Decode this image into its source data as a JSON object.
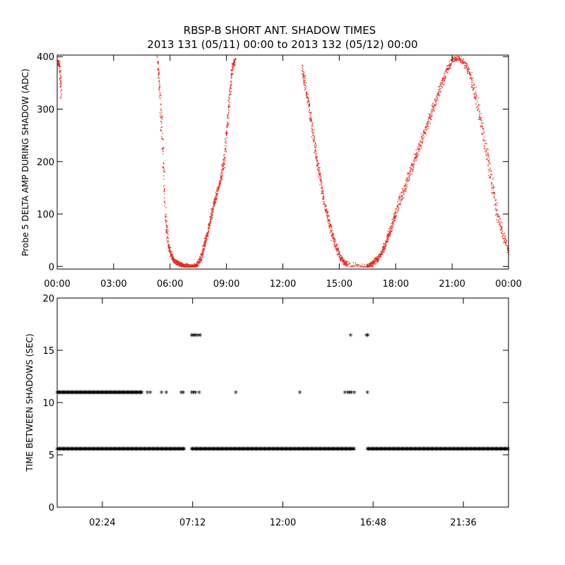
{
  "figure": {
    "title_line1": "RBSP-B SHORT ANT. SHADOW TIMES",
    "title_line2": "2013 131 (05/11) 00:00 to 2013 132 (05/12) 00:00"
  },
  "chart_data": [
    {
      "type": "scatter",
      "panel": "top",
      "xlabel": "",
      "ylabel": "Probe 5 DELTA AMP DURING SHADOW (ADC)",
      "xlim": [
        0,
        24
      ],
      "ylim": [
        -5,
        403
      ],
      "xtick_values": [
        0,
        3,
        6,
        9,
        12,
        15,
        18,
        21,
        24
      ],
      "xtick_labels": [
        "00:00",
        "03:00",
        "06:00",
        "09:00",
        "12:00",
        "15:00",
        "18:00",
        "21:00",
        "00:00"
      ],
      "ytick_values": [
        0,
        100,
        200,
        300,
        400
      ],
      "ytick_labels": [
        "0",
        "100",
        "200",
        "300",
        "400"
      ],
      "point_color": "#e8251a",
      "grid": false,
      "legend": "none",
      "series": [
        {
          "description": "dense dotted envelope (hour, amplitude ADC)",
          "x": [
            0.0,
            0.1,
            0.2,
            5.3,
            5.45,
            5.6,
            5.75,
            5.9,
            6.05,
            6.2,
            6.35,
            6.5,
            6.65,
            6.8,
            7.0,
            7.2,
            7.35,
            7.5,
            7.65,
            7.8,
            7.95,
            8.1,
            8.25,
            8.4,
            8.55,
            8.7,
            8.85,
            9.0,
            9.15,
            9.3,
            9.45,
            13.0,
            13.2,
            13.4,
            13.6,
            13.8,
            14.0,
            14.2,
            14.4,
            14.6,
            14.8,
            15.0,
            15.2,
            15.4,
            16.4,
            16.6,
            16.8,
            17.0,
            17.2,
            17.4,
            17.6,
            17.8,
            18.0,
            18.3,
            18.6,
            18.9,
            19.2,
            19.5,
            19.8,
            20.1,
            20.4,
            20.7,
            21.0,
            21.3,
            21.6,
            21.9,
            22.2,
            22.5,
            22.8,
            23.1,
            23.4,
            23.7,
            24.0
          ],
          "y": [
            392,
            385,
            330,
            400,
            330,
            220,
            90,
            40,
            20,
            12,
            8,
            5,
            3,
            2,
            0,
            0,
            2,
            8,
            20,
            40,
            60,
            85,
            110,
            130,
            150,
            170,
            200,
            260,
            330,
            380,
            395,
            380,
            340,
            300,
            250,
            200,
            160,
            120,
            90,
            60,
            40,
            20,
            10,
            5,
            0,
            3,
            8,
            15,
            25,
            40,
            60,
            80,
            105,
            135,
            165,
            195,
            225,
            255,
            285,
            315,
            345,
            375,
            395,
            398,
            390,
            370,
            330,
            280,
            220,
            160,
            100,
            60,
            30
          ]
        }
      ]
    },
    {
      "type": "scatter",
      "panel": "bottom",
      "xlabel": "",
      "ylabel": "TIME BETWEEN SHADOWS (SEC)",
      "xlim": [
        0,
        24
      ],
      "ylim": [
        0,
        20
      ],
      "xtick_values": [
        2.4,
        7.2,
        12.0,
        16.8,
        21.6
      ],
      "xtick_labels": [
        "02:24",
        "07:12",
        "12:00",
        "16:48",
        "21:36"
      ],
      "ytick_values": [
        0,
        5,
        10,
        15,
        20
      ],
      "ytick_labels": [
        "0",
        "5",
        "10",
        "15",
        "20"
      ],
      "marker": "*",
      "point_color": "#000000",
      "grid": false,
      "legend": "none",
      "series": [
        {
          "description": "continuous run at ~5.5 s (start hour, end hour)",
          "segments": [
            [
              0.0,
              6.75
            ],
            [
              7.15,
              15.8
            ],
            [
              16.5,
              24.0
            ]
          ],
          "value": 5.5
        },
        {
          "description": "continuous run at ~10.9 s (start hour, end hour)",
          "segments": [
            [
              0.0,
              4.5
            ]
          ],
          "value": 10.9
        },
        {
          "description": "isolated points (hour, seconds)",
          "x": [
            4.8,
            4.95,
            5.55,
            5.8,
            6.6,
            6.7,
            7.15,
            7.25,
            7.35,
            7.55,
            9.5,
            12.9,
            15.3,
            15.45,
            15.55,
            15.65,
            15.8,
            16.5
          ],
          "y": [
            10.9,
            10.9,
            10.9,
            10.9,
            10.9,
            10.9,
            10.9,
            10.9,
            10.9,
            10.9,
            10.9,
            10.9,
            10.9,
            10.9,
            10.9,
            10.9,
            10.9,
            10.9
          ]
        },
        {
          "description": "isolated points at ~16.4 s (hour, seconds)",
          "x": [
            7.15,
            7.22,
            7.3,
            7.38,
            7.5,
            7.6,
            15.6,
            16.45,
            16.52
          ],
          "y": [
            16.4,
            16.4,
            16.4,
            16.4,
            16.4,
            16.4,
            16.4,
            16.4,
            16.4
          ]
        }
      ]
    }
  ]
}
